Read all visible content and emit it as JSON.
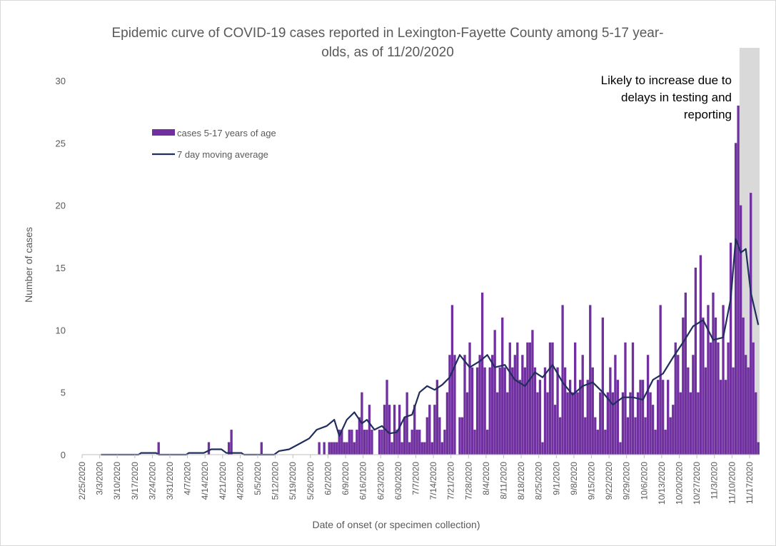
{
  "chart_data": {
    "type": "bar",
    "title": [
      "Epidemic curve of COVID-19 cases reported in Lexington-Fayette County among 5-17 year-",
      "olds, as of 11/20/2020"
    ],
    "xlabel": "Date of onset (or specimen collection)",
    "ylabel": "Number of cases",
    "ylim": [
      0,
      30
    ],
    "yticks": [
      0,
      5,
      10,
      15,
      20,
      25,
      30
    ],
    "x_start": "2/25/2020",
    "x_end": "11/20/2020",
    "x_tick_labels": [
      "2/25/2020",
      "3/3/2020",
      "3/10/2020",
      "3/17/2020",
      "3/24/2020",
      "3/31/2020",
      "4/7/2020",
      "4/14/2020",
      "4/21/2020",
      "4/28/2020",
      "5/5/2020",
      "5/12/2020",
      "5/19/2020",
      "5/26/2020",
      "6/2/2020",
      "6/9/2020",
      "6/16/2020",
      "6/23/2020",
      "6/30/2020",
      "7/7/2020",
      "7/14/2020",
      "7/21/2020",
      "7/28/2020",
      "8/4/2020",
      "8/11/2020",
      "8/18/2020",
      "8/25/2020",
      "9/1/2020",
      "9/8/2020",
      "9/15/2020",
      "9/22/2020",
      "9/29/2020",
      "10/6/2020",
      "10/13/2020",
      "10/20/2020",
      "10/27/2020",
      "11/3/2020",
      "11/10/2020",
      "11/17/2020"
    ],
    "series": [
      {
        "name": "cases 5-17 years of age",
        "type": "bar",
        "color": "#7030a0",
        "values": [
          0,
          0,
          0,
          0,
          0,
          0,
          0,
          0,
          0,
          0,
          0,
          0,
          0,
          0,
          0,
          0,
          0,
          0,
          0,
          0,
          0,
          0,
          0,
          1,
          0,
          0,
          0,
          0,
          0,
          0,
          0,
          0,
          0,
          0,
          0,
          0,
          0,
          0,
          0,
          0,
          0,
          0,
          0,
          1,
          0,
          0,
          0,
          0,
          0,
          0,
          0,
          1,
          2,
          0,
          0,
          0,
          0,
          0,
          0,
          0,
          0,
          0,
          0,
          0,
          1,
          0,
          0,
          0,
          0,
          0,
          0,
          0,
          0,
          0,
          0,
          0,
          0,
          0,
          0,
          0,
          0,
          0,
          0,
          0,
          0,
          0,
          0,
          1,
          0,
          1,
          0,
          1,
          1,
          1,
          1,
          2,
          2,
          1,
          1,
          2,
          2,
          1,
          2,
          3,
          5,
          2,
          2,
          4,
          2,
          0,
          0,
          2,
          2,
          4,
          6,
          4,
          1,
          4,
          2,
          4,
          1,
          3,
          5,
          1,
          2,
          4,
          2,
          2,
          1,
          1,
          3,
          4,
          1,
          4,
          6,
          3,
          1,
          2,
          5,
          8,
          12,
          8,
          0,
          3,
          3,
          8,
          5,
          9,
          7,
          2,
          7,
          8,
          13,
          7,
          2,
          7,
          8,
          10,
          5,
          7,
          11,
          7,
          5,
          9,
          7,
          8,
          9,
          6,
          8,
          7,
          9,
          9,
          10,
          7,
          5,
          6,
          1,
          7,
          5,
          9,
          9,
          4,
          7,
          3,
          12,
          7,
          5,
          6,
          5,
          9,
          5,
          6,
          8,
          3,
          6,
          12,
          7,
          3,
          2,
          5,
          11,
          2,
          5,
          7,
          5,
          8,
          6,
          1,
          5,
          9,
          3,
          5,
          9,
          3,
          5,
          6,
          6,
          3,
          8,
          5,
          4,
          2,
          6,
          12,
          6,
          2,
          6,
          3,
          4,
          9,
          8,
          5,
          11,
          13,
          7,
          5,
          8,
          15,
          5,
          16,
          11,
          7,
          12,
          9,
          13,
          11,
          9,
          6,
          12,
          6,
          9,
          17,
          7,
          25,
          28,
          20,
          11,
          8,
          7,
          21,
          9,
          5,
          1
        ],
        "last_day": "11/20/2020"
      },
      {
        "name": "7 day moving average",
        "type": "line",
        "color": "#1f2e5c",
        "points": [
          [
            "3/3/2020",
            0
          ],
          [
            "3/18/2020",
            0
          ],
          [
            "3/19/2020",
            0.14
          ],
          [
            "3/25/2020",
            0.14
          ],
          [
            "3/26/2020",
            0
          ],
          [
            "4/6/2020",
            0
          ],
          [
            "4/7/2020",
            0.14
          ],
          [
            "4/13/2020",
            0.14
          ],
          [
            "4/16/2020",
            0.43
          ],
          [
            "4/20/2020",
            0.43
          ],
          [
            "4/22/2020",
            0.14
          ],
          [
            "4/28/2020",
            0.14
          ],
          [
            "4/29/2020",
            0
          ],
          [
            "5/11/2020",
            0
          ],
          [
            "5/13/2020",
            0.29
          ],
          [
            "5/17/2020",
            0.43
          ],
          [
            "5/21/2020",
            0.86
          ],
          [
            "5/25/2020",
            1.3
          ],
          [
            "5/28/2020",
            2
          ],
          [
            "6/1/2020",
            2.3
          ],
          [
            "6/4/2020",
            2.8
          ],
          [
            "6/6/2020",
            1.5
          ],
          [
            "6/9/2020",
            2.8
          ],
          [
            "6/12/2020",
            3.4
          ],
          [
            "6/15/2020",
            2.5
          ],
          [
            "6/17/2020",
            2.8
          ],
          [
            "6/20/2020",
            2
          ],
          [
            "6/23/2020",
            2.3
          ],
          [
            "6/26/2020",
            1.7
          ],
          [
            "6/29/2020",
            1.8
          ],
          [
            "7/2/2020",
            3
          ],
          [
            "7/5/2020",
            3.2
          ],
          [
            "7/8/2020",
            5
          ],
          [
            "7/11/2020",
            5.5
          ],
          [
            "7/14/2020",
            5.2
          ],
          [
            "7/17/2020",
            5.6
          ],
          [
            "7/20/2020",
            6.2
          ],
          [
            "7/24/2020",
            8
          ],
          [
            "7/28/2020",
            7
          ],
          [
            "8/1/2020",
            7.5
          ],
          [
            "8/4/2020",
            8
          ],
          [
            "8/7/2020",
            7
          ],
          [
            "8/11/2020",
            7.2
          ],
          [
            "8/15/2020",
            6
          ],
          [
            "8/19/2020",
            5.5
          ],
          [
            "8/23/2020",
            6.6
          ],
          [
            "8/26/2020",
            6.2
          ],
          [
            "8/30/2020",
            7.2
          ],
          [
            "9/3/2020",
            5.8
          ],
          [
            "9/7/2020",
            4.8
          ],
          [
            "9/11/2020",
            5.5
          ],
          [
            "9/15/2020",
            5.8
          ],
          [
            "9/19/2020",
            5
          ],
          [
            "9/23/2020",
            4
          ],
          [
            "9/27/2020",
            4.6
          ],
          [
            "10/1/2020",
            4.6
          ],
          [
            "10/5/2020",
            4.4
          ],
          [
            "10/9/2020",
            6
          ],
          [
            "10/13/2020",
            6.5
          ],
          [
            "10/17/2020",
            7.8
          ],
          [
            "10/21/2020",
            9
          ],
          [
            "10/25/2020",
            10.3
          ],
          [
            "10/29/2020",
            10.8
          ],
          [
            "11/2/2020",
            9.2
          ],
          [
            "11/6/2020",
            9.4
          ],
          [
            "11/9/2020",
            12.5
          ],
          [
            "11/11/2020",
            17.3
          ],
          [
            "11/13/2020",
            16.2
          ],
          [
            "11/15/2020",
            16.5
          ],
          [
            "11/17/2020",
            13
          ],
          [
            "11/20/2020",
            10.4
          ]
        ]
      }
    ],
    "shaded_region": {
      "from": "11/13/2020",
      "to": "11/20/2020",
      "color": "#d9d9d9"
    },
    "annotation": [
      "Likely to increase due to",
      "delays in testing and",
      "reporting"
    ],
    "legend_position": "upper-left"
  }
}
